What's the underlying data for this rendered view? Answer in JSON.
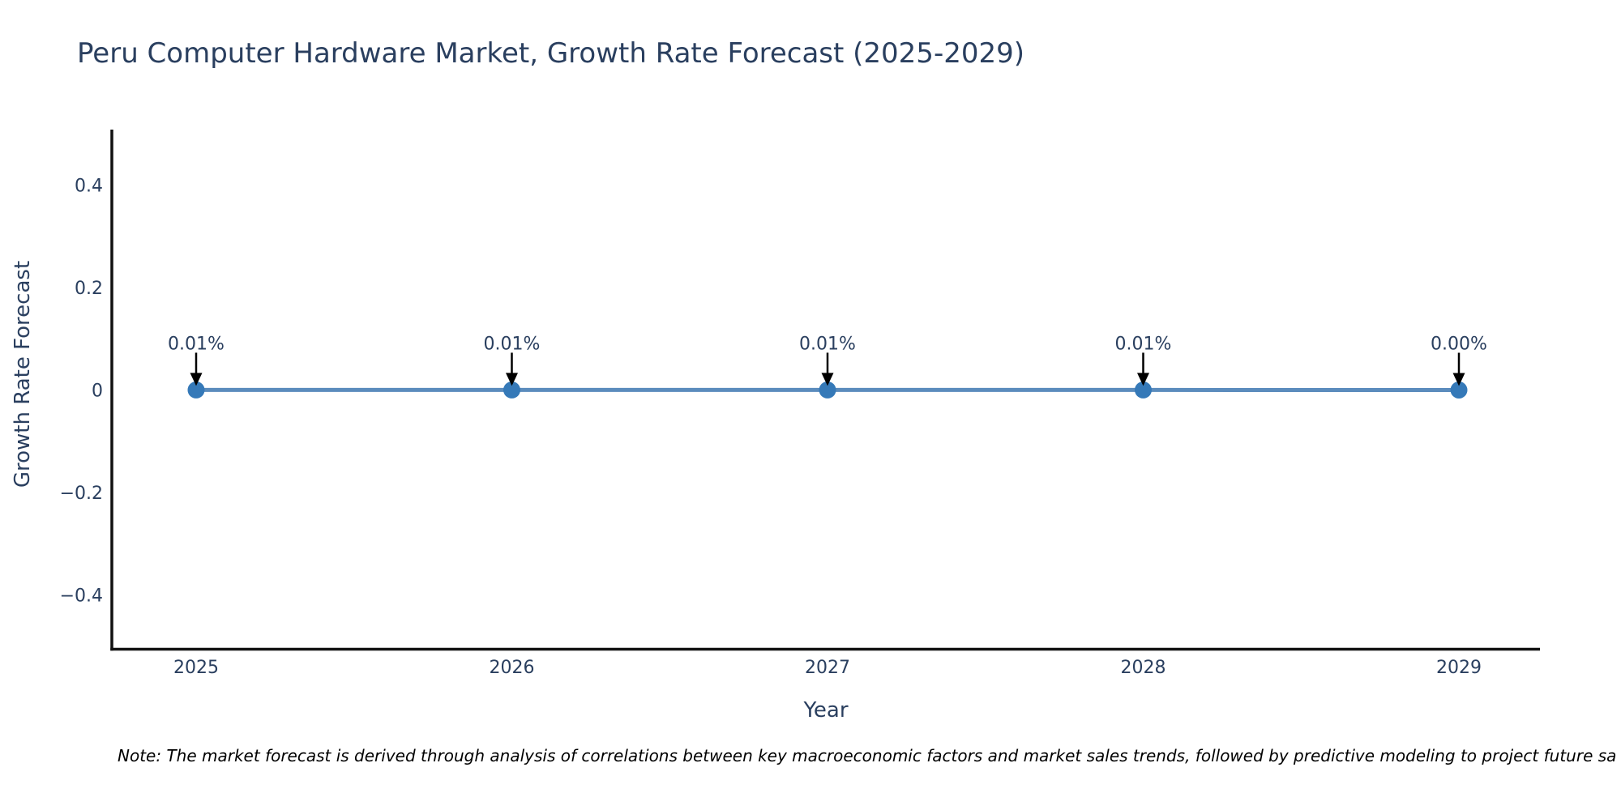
{
  "chart_data": {
    "type": "line",
    "title": "Peru Computer Hardware Market, Growth Rate Forecast (2025-2029)",
    "xlabel": "Year",
    "ylabel": "Growth Rate Forecast",
    "note": "Note: The market forecast is derived through analysis of correlations between key macroeconomic factors and market sales trends, followed by predictive modeling to project future sa",
    "categories": [
      "2025",
      "2026",
      "2027",
      "2028",
      "2029"
    ],
    "series": [
      {
        "name": "Growth Rate Forecast",
        "values_percent": [
          0.01,
          0.01,
          0.01,
          0.01,
          0.0
        ],
        "point_labels": [
          "0.01%",
          "0.01%",
          "0.01%",
          "0.01%",
          "0.00%"
        ]
      }
    ],
    "y_axis": {
      "range": [
        -0.51,
        0.51
      ],
      "ticks": [
        {
          "value": 0.4,
          "label": "0.4"
        },
        {
          "value": 0.2,
          "label": "0.2"
        },
        {
          "value": 0.0,
          "label": "0"
        },
        {
          "value": -0.2,
          "label": "−0.2"
        },
        {
          "value": -0.4,
          "label": "−0.4"
        }
      ]
    },
    "grid": false,
    "legend": false,
    "annotation_arrows": true,
    "colors": {
      "line": "#5b8cbd",
      "marker": "#3579b8",
      "arrow": "#000000",
      "axis": "#111111",
      "text": "#2a3f5f",
      "note_text": "#000000",
      "background": "#ffffff"
    }
  }
}
